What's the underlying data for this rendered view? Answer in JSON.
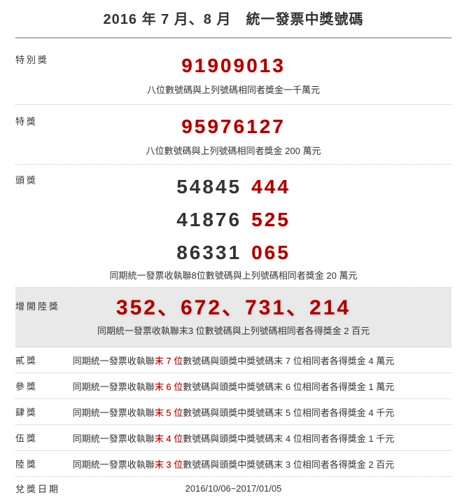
{
  "page": {
    "title": "2016 年 7 月、8 月　統一發票中獎號碼"
  },
  "colors": {
    "accent_red": "#a40000",
    "text": "#333333",
    "highlight_bg": "#e9e9e9",
    "divider": "#c3c3c3"
  },
  "prizes": {
    "special": {
      "label": "特別獎",
      "number": "91909013",
      "description": "八位數號碼與上列號碼相同者獎金一千萬元"
    },
    "grand": {
      "label": "特獎",
      "number": "95976127",
      "description": "八位數號碼與上列號碼相同者獎金 200 萬元"
    },
    "first": {
      "label": "頭獎",
      "numbers": [
        {
          "main": "54845",
          "last3": "444"
        },
        {
          "main": "41876",
          "last3": "525"
        },
        {
          "main": "86331",
          "last3": "065"
        }
      ],
      "description": "同期統一發票收執聯8位數號碼與上列號碼相同者獎金 20 萬元"
    },
    "additional_sixth": {
      "label": "增開陸獎",
      "numbers": "352、672、731、214",
      "description": "同期統一發票收執聯末3 位數號碼與上列號碼相同者各得獎金 2 百元"
    },
    "minor": [
      {
        "label": "貳獎",
        "prefix": "同期統一發票收執聯",
        "highlight": "末 7 位",
        "suffix": "數號碼與頭獎中獎號碼末 7 位相同者各得獎金 4 萬元"
      },
      {
        "label": "參獎",
        "prefix": "同期統一發票收執聯",
        "highlight": "末 6 位",
        "suffix": "數號碼與頭獎中獎號碼末 6 位相同者各得獎金 1 萬元"
      },
      {
        "label": "肆獎",
        "prefix": "同期統一發票收執聯",
        "highlight": "末 5 位",
        "suffix": "數號碼與頭獎中獎號碼末 5 位相同者各得獎金 4 千元"
      },
      {
        "label": "伍獎",
        "prefix": "同期統一發票收執聯",
        "highlight": "末 4 位",
        "suffix": "數號碼與頭獎中獎號碼末 4 位相同者各得獎金 1 千元"
      },
      {
        "label": "陸獎",
        "prefix": "同期統一發票收執聯",
        "highlight": "末 3 位",
        "suffix": "數號碼與頭獎中獎號碼末 3 位相同者各得獎金 2 百元"
      }
    ],
    "redeem": {
      "label": "兌獎日期",
      "value": "2016/10/06~2017/01/05"
    }
  }
}
